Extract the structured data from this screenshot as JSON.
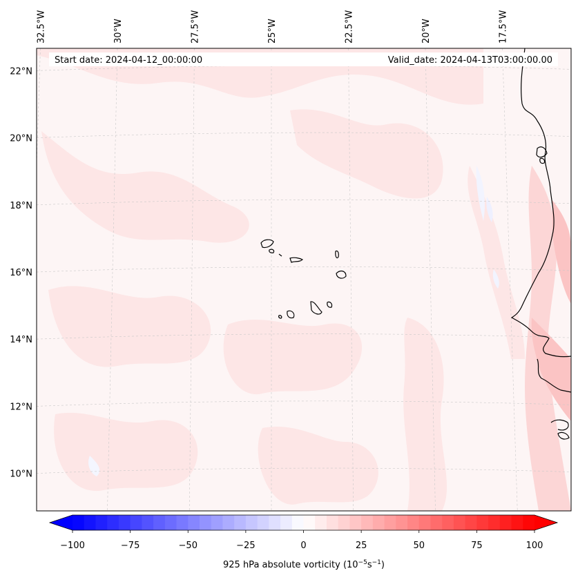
{
  "map": {
    "start_date_label": "Start date: 2024-04-12_00:00:00",
    "valid_date_label": "Valid_date: 2024-04-13T03:00:00.00",
    "lon_labels": [
      {
        "text": "32.5°W",
        "lon": -32.5
      },
      {
        "text": "30°W",
        "lon": -30
      },
      {
        "text": "27.5°W",
        "lon": -27.5
      },
      {
        "text": "25°W",
        "lon": -25
      },
      {
        "text": "22.5°W",
        "lon": -22.5
      },
      {
        "text": "20°W",
        "lon": -20
      },
      {
        "text": "17.5°W",
        "lon": -17.5
      }
    ],
    "lat_labels": [
      {
        "text": "22°N",
        "lat": 22
      },
      {
        "text": "20°N",
        "lat": 20
      },
      {
        "text": "18°N",
        "lat": 18
      },
      {
        "text": "16°N",
        "lat": 16
      },
      {
        "text": "14°N",
        "lat": 14
      },
      {
        "text": "12°N",
        "lat": 12
      },
      {
        "text": "10°N",
        "lat": 10
      }
    ],
    "colorbar": {
      "label": "925 hPa absolute vorticity (10",
      "unit_exp1": "−5",
      "unit_mid": "s",
      "unit_exp2": "−1",
      "unit_close": ")",
      "min": -100,
      "max": 100,
      "step": 5,
      "ticks": [
        {
          "value": -100,
          "text": "−100"
        },
        {
          "value": -75,
          "text": "−75"
        },
        {
          "value": -50,
          "text": "−50"
        },
        {
          "value": -25,
          "text": "−25"
        },
        {
          "value": 0,
          "text": "0"
        },
        {
          "value": 25,
          "text": "25"
        },
        {
          "value": 50,
          "text": "50"
        },
        {
          "value": 75,
          "text": "75"
        },
        {
          "value": 100,
          "text": "100"
        }
      ]
    },
    "colors": {
      "negative_end": "#0000ff",
      "positive_end": "#ff0000",
      "neutral": "#ffffff",
      "background_tint": "#fdf5f5",
      "coast": "#000000"
    }
  }
}
